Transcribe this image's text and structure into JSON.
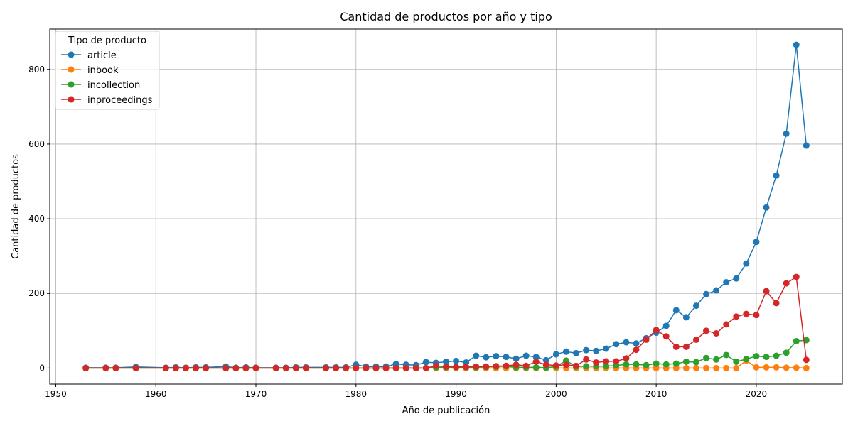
{
  "chart_data": {
    "type": "line",
    "title": "Cantidad de productos por año y tipo",
    "xlabel": "Año de publicación",
    "ylabel": "Cantidad de productos",
    "xlim": [
      1949.4,
      2028.6
    ],
    "ylim": [
      -43,
      908
    ],
    "xticks": [
      1950,
      1960,
      1970,
      1980,
      1990,
      2000,
      2010,
      2020
    ],
    "yticks": [
      0,
      200,
      400,
      600,
      800
    ],
    "grid": true,
    "legend": {
      "title": "Tipo de producto",
      "placement": "top-left"
    },
    "x": [
      1953,
      1955,
      1956,
      1958,
      1961,
      1962,
      1963,
      1964,
      1965,
      1967,
      1968,
      1969,
      1970,
      1972,
      1973,
      1974,
      1975,
      1977,
      1978,
      1979,
      1980,
      1981,
      1982,
      1983,
      1984,
      1985,
      1986,
      1987,
      1988,
      1989,
      1990,
      1991,
      1992,
      1993,
      1994,
      1995,
      1996,
      1997,
      1998,
      1999,
      2000,
      2001,
      2002,
      2003,
      2004,
      2005,
      2006,
      2007,
      2008,
      2009,
      2010,
      2011,
      2012,
      2013,
      2014,
      2015,
      2016,
      2017,
      2018,
      2019,
      2020,
      2021,
      2022,
      2023,
      2024,
      2025
    ],
    "series": [
      {
        "name": "article",
        "color": "#1f77b4",
        "values": [
          1,
          1,
          1,
          3,
          1,
          2,
          1,
          2,
          2,
          4,
          1,
          2,
          1,
          1,
          1,
          2,
          2,
          2,
          2,
          2,
          9,
          4,
          4,
          4,
          11,
          9,
          8,
          16,
          14,
          17,
          19,
          15,
          33,
          29,
          32,
          30,
          25,
          33,
          30,
          21,
          37,
          44,
          40,
          48,
          46,
          52,
          64,
          69,
          66,
          80,
          95,
          113,
          155,
          136,
          167,
          198,
          208,
          230,
          240,
          280,
          338,
          430,
          516,
          628,
          866,
          596
        ]
      },
      {
        "name": "inbook",
        "color": "#ff7f0e",
        "values": [
          0,
          0,
          0,
          0,
          0,
          0,
          0,
          0,
          0,
          0,
          0,
          0,
          0,
          0,
          0,
          0,
          0,
          0,
          0,
          0,
          0,
          0,
          0,
          0,
          0,
          0,
          0,
          0,
          0,
          0,
          0,
          0,
          0,
          0,
          0,
          0,
          0,
          0,
          0,
          0,
          0,
          0,
          0,
          0,
          0,
          0,
          0,
          0,
          0,
          0,
          0,
          0,
          0,
          0,
          0,
          0,
          0,
          0,
          0,
          20,
          2,
          2,
          2,
          1,
          1,
          0
        ]
      },
      {
        "name": "incollection",
        "color": "#2ca02c",
        "values": [
          0,
          0,
          0,
          0,
          0,
          0,
          0,
          0,
          0,
          0,
          0,
          0,
          0,
          0,
          0,
          0,
          0,
          0,
          0,
          0,
          0,
          0,
          0,
          0,
          0,
          0,
          0,
          0,
          2,
          2,
          2,
          2,
          2,
          3,
          4,
          5,
          2,
          2,
          2,
          1,
          4,
          20,
          4,
          5,
          5,
          5,
          7,
          10,
          10,
          8,
          12,
          10,
          12,
          17,
          16,
          27,
          23,
          35,
          17,
          24,
          32,
          30,
          33,
          41,
          72,
          75
        ]
      },
      {
        "name": "inproceedings",
        "color": "#d62728",
        "values": [
          0,
          0,
          0,
          0,
          0,
          0,
          0,
          0,
          0,
          0,
          0,
          0,
          0,
          0,
          0,
          0,
          0,
          0,
          0,
          0,
          0,
          0,
          0,
          0,
          0,
          0,
          0,
          0,
          6,
          4,
          3,
          3,
          4,
          4,
          5,
          6,
          9,
          6,
          17,
          9,
          7,
          9,
          6,
          23,
          15,
          18,
          18,
          26,
          49,
          76,
          102,
          85,
          57,
          57,
          76,
          100,
          93,
          117,
          138,
          145,
          142,
          206,
          174,
          227,
          244,
          22
        ]
      }
    ]
  }
}
